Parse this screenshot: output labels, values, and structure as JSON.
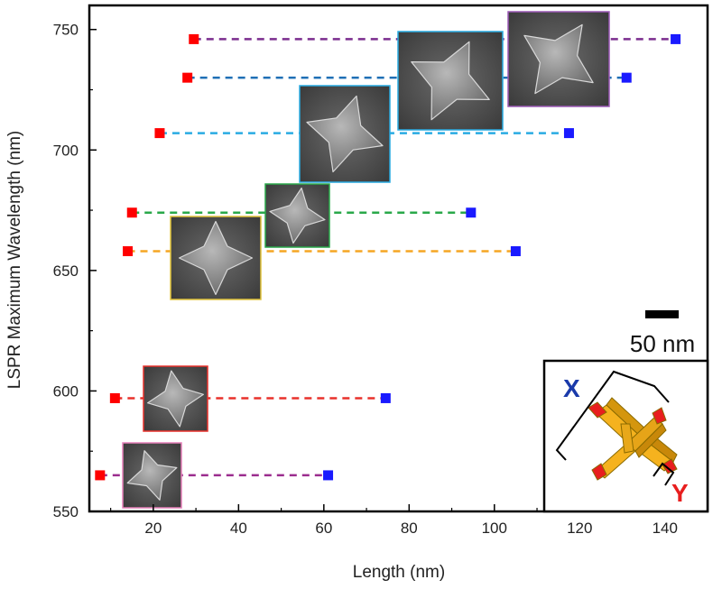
{
  "chart_data": {
    "type": "scatter",
    "title": "",
    "xlabel": "Length (nm)",
    "ylabel": "LSPR Maximum Wavelength (nm)",
    "xlim": [
      5,
      150
    ],
    "ylim": [
      550,
      760
    ],
    "xticks": [
      20,
      40,
      60,
      80,
      100,
      120,
      140
    ],
    "yticks": [
      550,
      600,
      650,
      700,
      750
    ],
    "grid": false,
    "series": [
      {
        "color": "#9b2c8e",
        "y": 565,
        "y_length": 7.5,
        "x_length": 61
      },
      {
        "color": "#e8312b",
        "y": 597,
        "y_length": 11,
        "x_length": 74.5
      },
      {
        "color": "#f5a623",
        "y": 658,
        "y_length": 14,
        "x_length": 105
      },
      {
        "color": "#2aa84a",
        "y": 674,
        "y_length": 15,
        "x_length": 94.5
      },
      {
        "color": "#29abe2",
        "y": 707,
        "y_length": 21.5,
        "x_length": 117.5
      },
      {
        "color": "#1f6fb5",
        "y": 730,
        "y_length": 28,
        "x_length": 131
      },
      {
        "color": "#7b2d8e",
        "y": 746,
        "y_length": 29.5,
        "x_length": 142.5
      }
    ],
    "marker_colors": {
      "y_length": "#ff0000",
      "x_length": "#1a1aff"
    },
    "insets": [
      {
        "series": 0,
        "frame_color": "#e57fb8"
      },
      {
        "series": 1,
        "frame_color": "#e8312b"
      },
      {
        "series": 2,
        "frame_color": "#e0c33a"
      },
      {
        "series": 3,
        "frame_color": "#2aa84a"
      },
      {
        "series": 4,
        "frame_color": "#29abe2"
      },
      {
        "series": 5,
        "frame_color": "#29abe2"
      },
      {
        "series": 6,
        "frame_color": "#9b59b6"
      }
    ],
    "scale_bar_label": "50 nm",
    "diagram_labels": {
      "x": "X",
      "y": "Y"
    }
  }
}
